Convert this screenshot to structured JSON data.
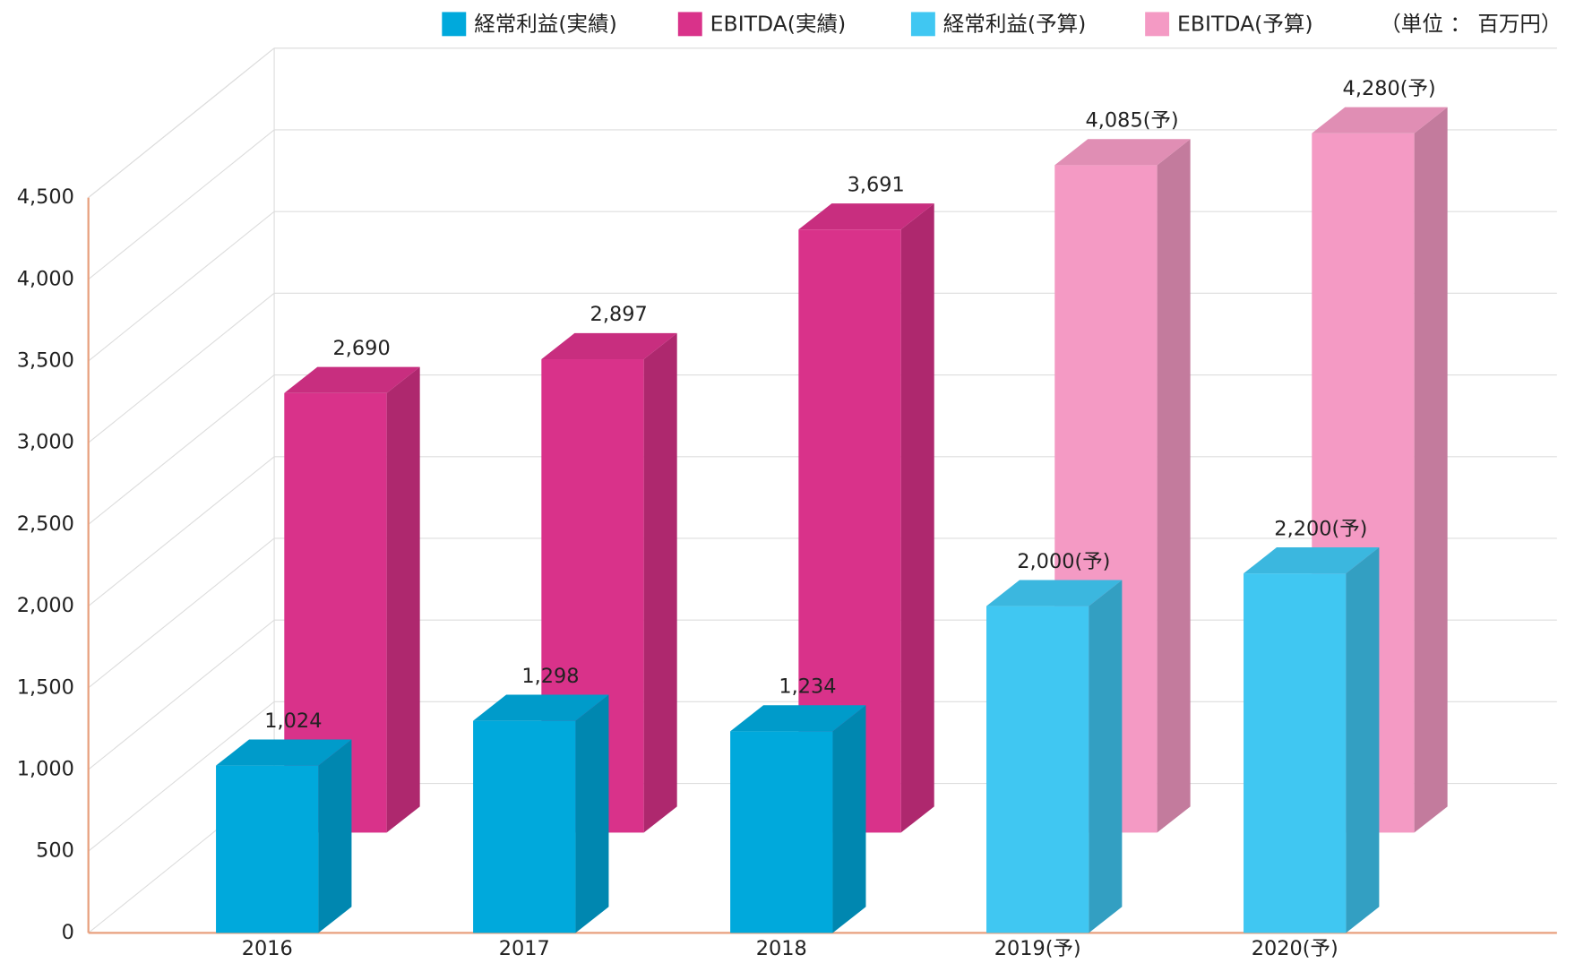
{
  "chart_data": {
    "type": "bar3d",
    "unit_label": "（単位 ： 百万円）",
    "categories": [
      "2016",
      "2017",
      "2018",
      "2019(予)",
      "2020(予)"
    ],
    "series": [
      {
        "name": "経常利益(実績)",
        "color": "#00a9dc",
        "values": [
          1024,
          1298,
          1234,
          null,
          null
        ],
        "value_labels": [
          "1,024",
          "1,298",
          "1,234",
          null,
          null
        ]
      },
      {
        "name": "EBITDA(実績)",
        "color": "#d9328a",
        "values": [
          2690,
          2897,
          3691,
          null,
          null
        ],
        "value_labels": [
          "2,690",
          "2,897",
          "3,691",
          null,
          null
        ]
      },
      {
        "name": "経常利益(予算)",
        "color": "#40c7f2",
        "values": [
          null,
          null,
          null,
          2000,
          2200
        ],
        "value_labels": [
          null,
          null,
          null,
          "2,000(予)",
          "2,200(予)"
        ]
      },
      {
        "name": "EBITDA(予算)",
        "color": "#f49ac4",
        "values": [
          null,
          null,
          null,
          4085,
          4280
        ],
        "value_labels": [
          null,
          null,
          null,
          "4,085(予)",
          "4,280(予)"
        ]
      }
    ],
    "ylim": [
      0,
      4500
    ],
    "yticks": [
      0,
      500,
      {
        "value": 1000,
        "label": "1,000"
      },
      {
        "value": 1500,
        "label": "1,500"
      },
      {
        "value": 2000,
        "label": "2,000"
      },
      {
        "value": 2500,
        "label": "2,500"
      },
      {
        "value": 3000,
        "label": "3,000"
      },
      {
        "value": 3500,
        "label": "3,500"
      },
      {
        "value": 4000,
        "label": "4,000"
      },
      {
        "value": 4500,
        "label": "4,500"
      }
    ],
    "grid": true
  }
}
